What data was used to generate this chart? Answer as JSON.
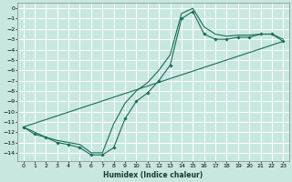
{
  "xlabel": "Humidex (Indice chaleur)",
  "bg_color": "#c8e8df",
  "grid_color": "#ffffff",
  "line_color": "#1a6b5a",
  "xlim": [
    -0.5,
    23.5
  ],
  "ylim": [
    -14.8,
    0.5
  ],
  "xticks": [
    0,
    1,
    2,
    3,
    4,
    5,
    6,
    7,
    8,
    9,
    10,
    11,
    12,
    13,
    14,
    15,
    16,
    17,
    18,
    19,
    20,
    21,
    22,
    23
  ],
  "yticks": [
    0,
    -1,
    -2,
    -3,
    -4,
    -5,
    -6,
    -7,
    -8,
    -9,
    -10,
    -11,
    -12,
    -13,
    -14
  ],
  "curve1_x": [
    0,
    1,
    2,
    3,
    4,
    5,
    6,
    7,
    8,
    9,
    10,
    11,
    12,
    13,
    14,
    15,
    16,
    17,
    18,
    19,
    20,
    21,
    22,
    23
  ],
  "curve1_y": [
    -11.5,
    -12.2,
    -12.5,
    -13.0,
    -13.2,
    -13.5,
    -14.2,
    -14.2,
    -13.5,
    -10.7,
    -9.0,
    -8.2,
    -7.0,
    -5.5,
    -1.0,
    -0.3,
    -2.5,
    -3.0,
    -3.0,
    -2.8,
    -2.8,
    -2.5,
    -2.5,
    -3.2
  ],
  "curve2_x": [
    0,
    1,
    2,
    3,
    4,
    5,
    6,
    7,
    8,
    9,
    10,
    11,
    12,
    13,
    14,
    15,
    16,
    17,
    18,
    19,
    20,
    21,
    22,
    23
  ],
  "curve2_y": [
    -11.5,
    -12.0,
    -12.5,
    -12.8,
    -13.0,
    -13.2,
    -14.0,
    -14.0,
    -11.2,
    -9.2,
    -8.0,
    -7.2,
    -6.0,
    -4.5,
    -0.5,
    0.0,
    -1.8,
    -2.5,
    -2.7,
    -2.6,
    -2.6,
    -2.5,
    -2.5,
    -3.0
  ],
  "curve3_x": [
    0,
    23
  ],
  "curve3_y": [
    -11.5,
    -3.2
  ]
}
